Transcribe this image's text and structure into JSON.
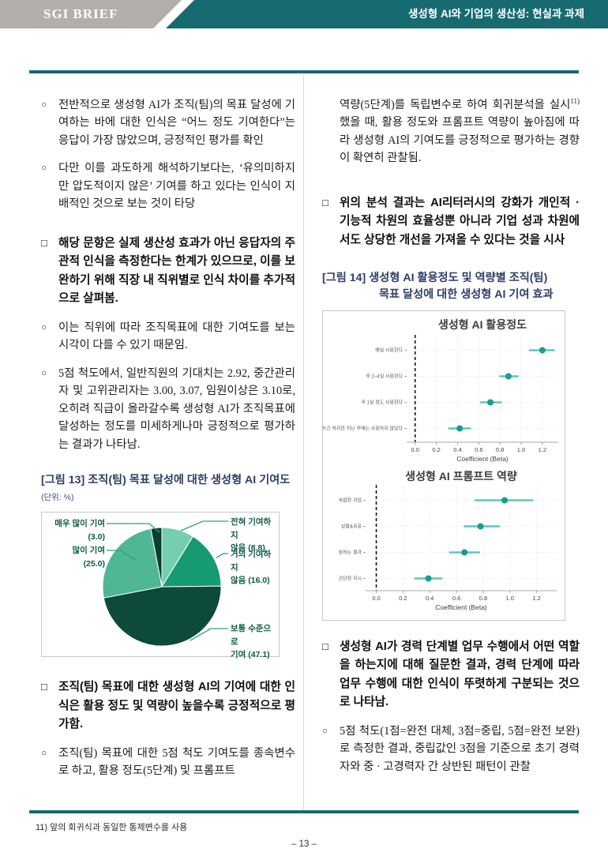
{
  "header": {
    "brand": "SGI BRIEF",
    "doc_title": "생성형 AI와 기업의 생산성: 현실과 과제"
  },
  "left": {
    "bullets": [
      {
        "marker": "○",
        "text": "전반적으로 생성형 AI가 조직(팀)의 목표 달성에 기여하는 바에 대한 인식은 “어느 정도 기여한다”는 응답이 가장 많았으며, 긍정적인 평가를 확인"
      },
      {
        "marker": "○",
        "text": "다만 이를 과도하게 해석하기보다는, ‘유의미하지만 압도적이지 않은’ 기여를 하고 있다는 인식이 지배적인 것으로 보는 것이 타당"
      },
      {
        "marker": "□",
        "text": "해당 문항은 실제 생산성 효과가 아닌 응답자의 주관적 인식을 측정한다는 한계가 있으므로, 이를 보완하기 위해 직장 내 직위별로 인식 차이를 추가적으로 살펴봄."
      },
      {
        "marker": "○",
        "text": "이는 직위에 따라 조직목표에 대한 기여도를 보는 시각이 다를 수 있기 때문임."
      },
      {
        "marker": "○",
        "text": "5점 척도에서, 일반직원의 기대치는 2.92, 중간관리자 및 고위관리자는 3.00, 3.07, 임원이상은 3.10로, 오히려 직급이 올라갈수록 생성형 AI가 조직목표에 달성하는 정도를 미세하게나마 긍정적으로 평가하는 결과가 나타남."
      }
    ],
    "fig13": {
      "title": "[그림 13] 조직(팀) 목표 달성에 대한 생성형 AI 기여도",
      "unit": "(단위: %)",
      "callouts": [
        {
          "lines": [
            "매우 많이 기여",
            "(3.0)"
          ]
        },
        {
          "lines": [
            "많이 기여",
            "(25.0)"
          ]
        },
        {
          "lines": [
            "전혀 기여하지",
            "않음 (8.8)"
          ]
        },
        {
          "lines": [
            "거의 기여하지",
            "않음 (16.0)"
          ]
        },
        {
          "lines": [
            "보통 수준으로",
            "기여 (47.1)"
          ]
        }
      ]
    },
    "bullets2": [
      {
        "marker": "□",
        "text": "조직(팀) 목표에 대한 생성형 AI의 기여에 대한 인식은 활용 정도 및 역량이 높을수록 긍정적으로 평가함."
      },
      {
        "marker": "○",
        "text": "조직(팀) 목표에 대한 5점 척도 기여도를 종속변수로 하고, 활용 정도(5단계) 및 프롬프트"
      }
    ]
  },
  "right": {
    "cont_pre": "역량(5단계)를 독립변수로 하여 회귀분석을 실시",
    "cont_sup": "11)",
    "cont_post": "했을 때, 활용 정도와 프롬프트 역량이 높아짐에 따라 생성형 AI의 기여도를 긍정적으로 평가하는 경향이 확연히 관찰됨.",
    "bullets": [
      {
        "marker": "□",
        "text": "위의 분석 결과는 AI리터러시의 강화가 개인적 · 기능적 차원의 효율성뿐 아니라 기업 성과 차원에서도 상당한 개선을 가져올 수 있다는 것을 시사"
      }
    ],
    "fig14": {
      "title_line1": "[그림 14] 생성형 AI 활용정도 및 역량별 조직(팀)",
      "title_line2": "목표 달성에 대한 생성형 AI 기여 효과"
    },
    "bullets2": [
      {
        "marker": "□",
        "text": "생성형 AI가 경력 단계별 업무 수행에서 어떤 역할을 하는지에 대해 질문한 결과, 경력 단계에 따라 업무 수행에 대한 인식이 뚜렷하게 구분되는 것으로 나타남."
      },
      {
        "marker": "○",
        "text": "5점 척도(1점=완전 대체, 3점=중립, 5점=완전 보완)로 측정한 결과, 중립값인 3점을 기준으로 초기 경력자와 중 · 고경력자 간 상반된 패턴이 관찰"
      }
    ]
  },
  "footer": {
    "footnote": "11) 앞의 회귀식과 동일한 통제변수를 사용",
    "page_number": "– 13 –"
  },
  "colors": {
    "teal_band": "#166a70",
    "header_gray": "#b3afac",
    "navy_title": "#2e3e66",
    "pie_label_green": "#0e5a44",
    "dot_teal": "#179d92",
    "ci_teal": "#5fc6bd"
  },
  "chart_data": [
    {
      "type": "pie",
      "figure": "그림 13",
      "title": "조직(팀) 목표 달성에 대한 생성형 AI 기여도",
      "unit": "%",
      "labels": [
        "전혀 기여하지 않음",
        "거의 기여하지 않음",
        "보통 수준으로 기여",
        "많이 기여",
        "매우 많이 기여"
      ],
      "values": [
        8.8,
        16.0,
        47.1,
        25.0,
        3.0
      ],
      "colors": [
        "#74cfae",
        "#169a72",
        "#0d4a39",
        "#4fb794",
        "#0a3f30"
      ],
      "start": "top",
      "direction": "clockwise",
      "legend_position": "callouts"
    },
    {
      "type": "scatter",
      "variant": "dot-with-ci",
      "title": "생성형 AI 활용정도",
      "categories": [
        "매일 사용한다",
        "주 2~4일 사용한다",
        "주 1일 정도 사용한다",
        "쓰긴 하지만 지난 주에는 사용하지 않았다"
      ],
      "estimates": [
        1.2,
        0.88,
        0.71,
        0.42
      ],
      "ci_low": [
        1.08,
        0.8,
        0.62,
        0.32
      ],
      "ci_high": [
        1.31,
        0.97,
        0.81,
        0.52
      ],
      "xlabel": "Coefficient (Beta)",
      "xticks": [
        0.0,
        0.2,
        0.4,
        0.6,
        0.8,
        1.0,
        1.2
      ],
      "xlim": [
        -0.08,
        1.35
      ],
      "ref_line": 0.0,
      "grid": true,
      "legend": false
    },
    {
      "type": "scatter",
      "variant": "dot-with-ci",
      "title": "생성형 AI 프롬프트 역량",
      "categories": [
        "복잡한 과업",
        "상황&목표",
        "원하는 결과",
        "간단한 지시"
      ],
      "estimates": [
        0.96,
        0.78,
        0.66,
        0.39
      ],
      "ci_low": [
        0.74,
        0.66,
        0.55,
        0.29
      ],
      "ci_high": [
        1.17,
        0.92,
        0.77,
        0.49
      ],
      "xlabel": "Coefficient (Beta)",
      "xticks": [
        0.0,
        0.2,
        0.4,
        0.6,
        0.8,
        1.0,
        1.2
      ],
      "xlim": [
        -0.08,
        1.35
      ],
      "ref_line": 0.0,
      "grid": true,
      "legend": false
    }
  ]
}
